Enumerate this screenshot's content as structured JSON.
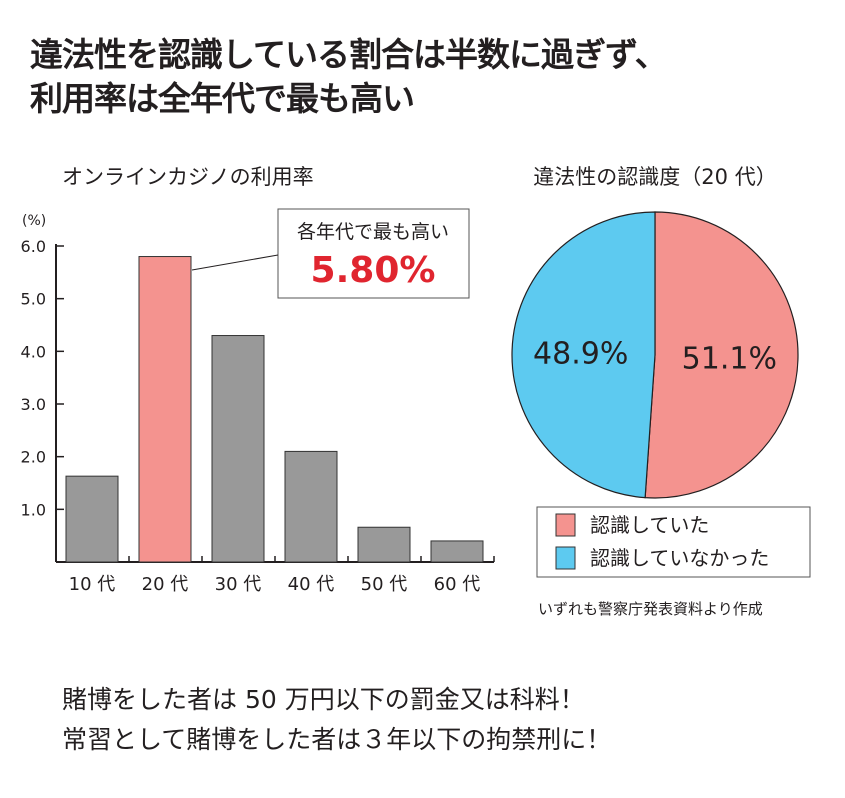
{
  "header": {
    "title_line1": "違法性を認識している割合は半数に過ぎず、",
    "title_line2": "利用率は全年代で最も高い"
  },
  "chart_data": [
    {
      "type": "bar",
      "title": "オンラインカジノの利用率",
      "ylabel": "(%)",
      "categories": [
        "10 代",
        "20 代",
        "30 代",
        "40 代",
        "50 代",
        "60 代"
      ],
      "values": [
        1.63,
        5.8,
        4.3,
        2.1,
        0.66,
        0.4
      ],
      "ylim": [
        0,
        6.0
      ],
      "yticks": [
        "1.0",
        "2.0",
        "3.0",
        "4.0",
        "5.0",
        "6.0"
      ],
      "highlight_index": 1,
      "colors": {
        "bar": "#999999",
        "highlight": "#f4938f"
      },
      "annotation": {
        "label": "各年代で最も高い",
        "value": "5.80%",
        "color": "#e0252f"
      }
    },
    {
      "type": "pie",
      "title": "違法性の認識度（20 代）",
      "slices": [
        {
          "label": "認識していた",
          "value": 51.1,
          "text": "51.1%",
          "color": "#f4938f"
        },
        {
          "label": "認識していなかった",
          "value": 48.9,
          "text": "48.9%",
          "color": "#5dcaf0"
        }
      ]
    }
  ],
  "source": "いずれも警察庁発表資料より作成",
  "footer": {
    "line1": "賭博をした者は 50 万円以下の罰金又は科料！",
    "line2": "常習として賭博をした者は３年以下の拘禁刑に！"
  }
}
